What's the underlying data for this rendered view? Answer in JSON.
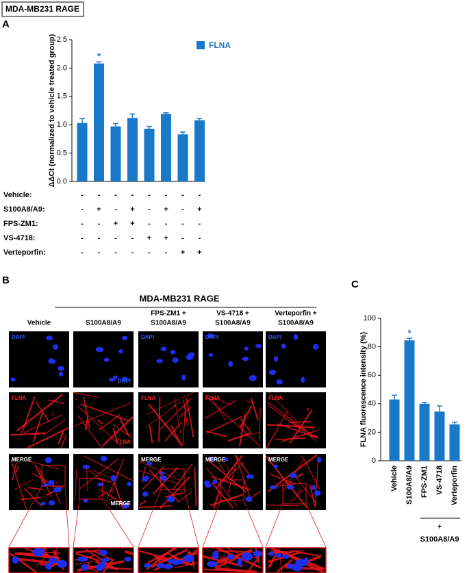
{
  "panel_labels": [
    "A",
    "B",
    "C"
  ],
  "box_title": "MDA-MB231 RAGE",
  "chart_data": [
    {
      "type": "bar",
      "ylabel": "ΔΔCt (normalized to vehicle treated group)",
      "series": [
        {
          "name": "FLNA",
          "color": "#1a78c8",
          "values": [
            1.03,
            2.08,
            0.97,
            1.12,
            0.93,
            1.19,
            0.83,
            1.08
          ],
          "errors": [
            0.08,
            0.03,
            0.05,
            0.07,
            0.04,
            0.02,
            0.04,
            0.03
          ]
        }
      ],
      "significance": [
        null,
        "*",
        null,
        null,
        null,
        null,
        null,
        null
      ],
      "ylim": [
        0,
        2.5
      ],
      "yticks": [
        {
          "value": 0,
          "label": "0.0"
        },
        0.5,
        {
          "value": 1,
          "label": "1.0"
        },
        1.5,
        {
          "value": 2,
          "label": "2.0"
        },
        2.5
      ],
      "legend": "top-right",
      "treatments": [
        {
          "name": "Vehicle:",
          "marks": [
            "-",
            "-",
            "-",
            "-",
            "-",
            "-",
            "-",
            "-"
          ]
        },
        {
          "name": "S100A8/A9:",
          "marks": [
            "-",
            "+",
            "-",
            "+",
            "-",
            "+",
            "-",
            "+"
          ]
        },
        {
          "name": "FPS-ZM1:",
          "marks": [
            "-",
            "-",
            "+",
            "+",
            "-",
            "-",
            "-",
            "-"
          ]
        },
        {
          "name": "VS-4718:",
          "marks": [
            "-",
            "-",
            "-",
            "-",
            "+",
            "+",
            "-",
            "-"
          ]
        },
        {
          "name": "Verteporfin:",
          "marks": [
            "-",
            "-",
            "-",
            "-",
            "-",
            "-",
            "+",
            "+"
          ]
        }
      ]
    },
    {
      "type": "bar",
      "ylabel": "FLNA fluorescence intensity (%)",
      "categories": [
        "Vehicle",
        "S100A8/A9",
        "FPS-ZM1",
        "VS-4718",
        "Verteporfin"
      ],
      "values": [
        43,
        84.5,
        40,
        34.5,
        25.5
      ],
      "errors": [
        3,
        1.5,
        1,
        4,
        1.5
      ],
      "significance": [
        null,
        "*",
        null,
        null,
        null
      ],
      "color": "#1a78c8",
      "ylim": [
        0,
        100
      ],
      "yticks": [
        0,
        20,
        40,
        60,
        80,
        100
      ],
      "group_annotation": {
        "sign": "+",
        "label": "S100A8/A9"
      }
    }
  ],
  "microscopy": {
    "title": "MDA-MB231 RAGE",
    "columns": [
      [
        "Vehicle"
      ],
      [
        "S100A8/A9"
      ],
      [
        "FPS-ZM1 +",
        "S100A8/A9"
      ],
      [
        "VS-4718 +",
        "S100A8/A9"
      ],
      [
        "Verteporfin +",
        "S100A8/A9"
      ]
    ],
    "stains": [
      "DAPI",
      "FLNA",
      "MERGE"
    ]
  }
}
